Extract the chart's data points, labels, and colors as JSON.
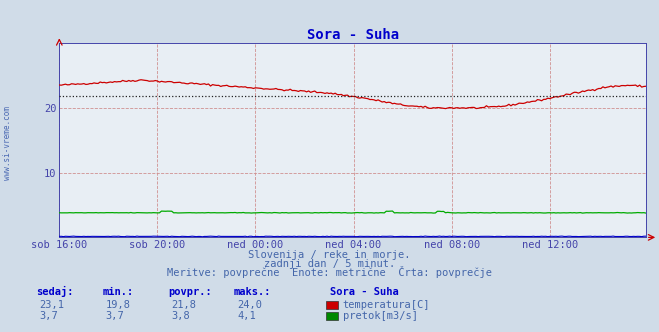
{
  "title": "Sora - Suha",
  "title_color": "#0000cc",
  "bg_color": "#d0dce8",
  "plot_bg_color": "#e8eef4",
  "grid_color_red": "#d09090",
  "watermark": "www.si-vreme.com",
  "subtitle1": "Slovenija / reke in morje.",
  "subtitle2": "zadnji dan / 5 minut.",
  "subtitle3": "Meritve: povprečne  Enote: metrične  Črta: povprečje",
  "subtitle_color": "#4466aa",
  "table_headers": [
    "sedaj:",
    "min.:",
    "povpr.:",
    "maks.:"
  ],
  "table_station": "Sora - Suha",
  "table_rows": [
    {
      "values": [
        "23,1",
        "19,8",
        "21,8",
        "24,0"
      ],
      "color": "#cc0000",
      "label": "temperatura[C]"
    },
    {
      "values": [
        "3,7",
        "3,7",
        "3,8",
        "4,1"
      ],
      "color": "#008800",
      "label": "pretok[m3/s]"
    }
  ],
  "x_tick_labels": [
    "sob 16:00",
    "sob 20:00",
    "ned 00:00",
    "ned 04:00",
    "ned 08:00",
    "ned 12:00"
  ],
  "x_ticks_pos": [
    0,
    48,
    96,
    144,
    192,
    240
  ],
  "ylim": [
    0,
    30
  ],
  "yticks": [
    10,
    20
  ],
  "total_points": 288,
  "avg_line_value": 21.8,
  "temp_color": "#cc0000",
  "flow_color": "#00aa00",
  "height_color": "#0000cc",
  "axis_color": "#4444aa",
  "arrow_color": "#cc0000"
}
